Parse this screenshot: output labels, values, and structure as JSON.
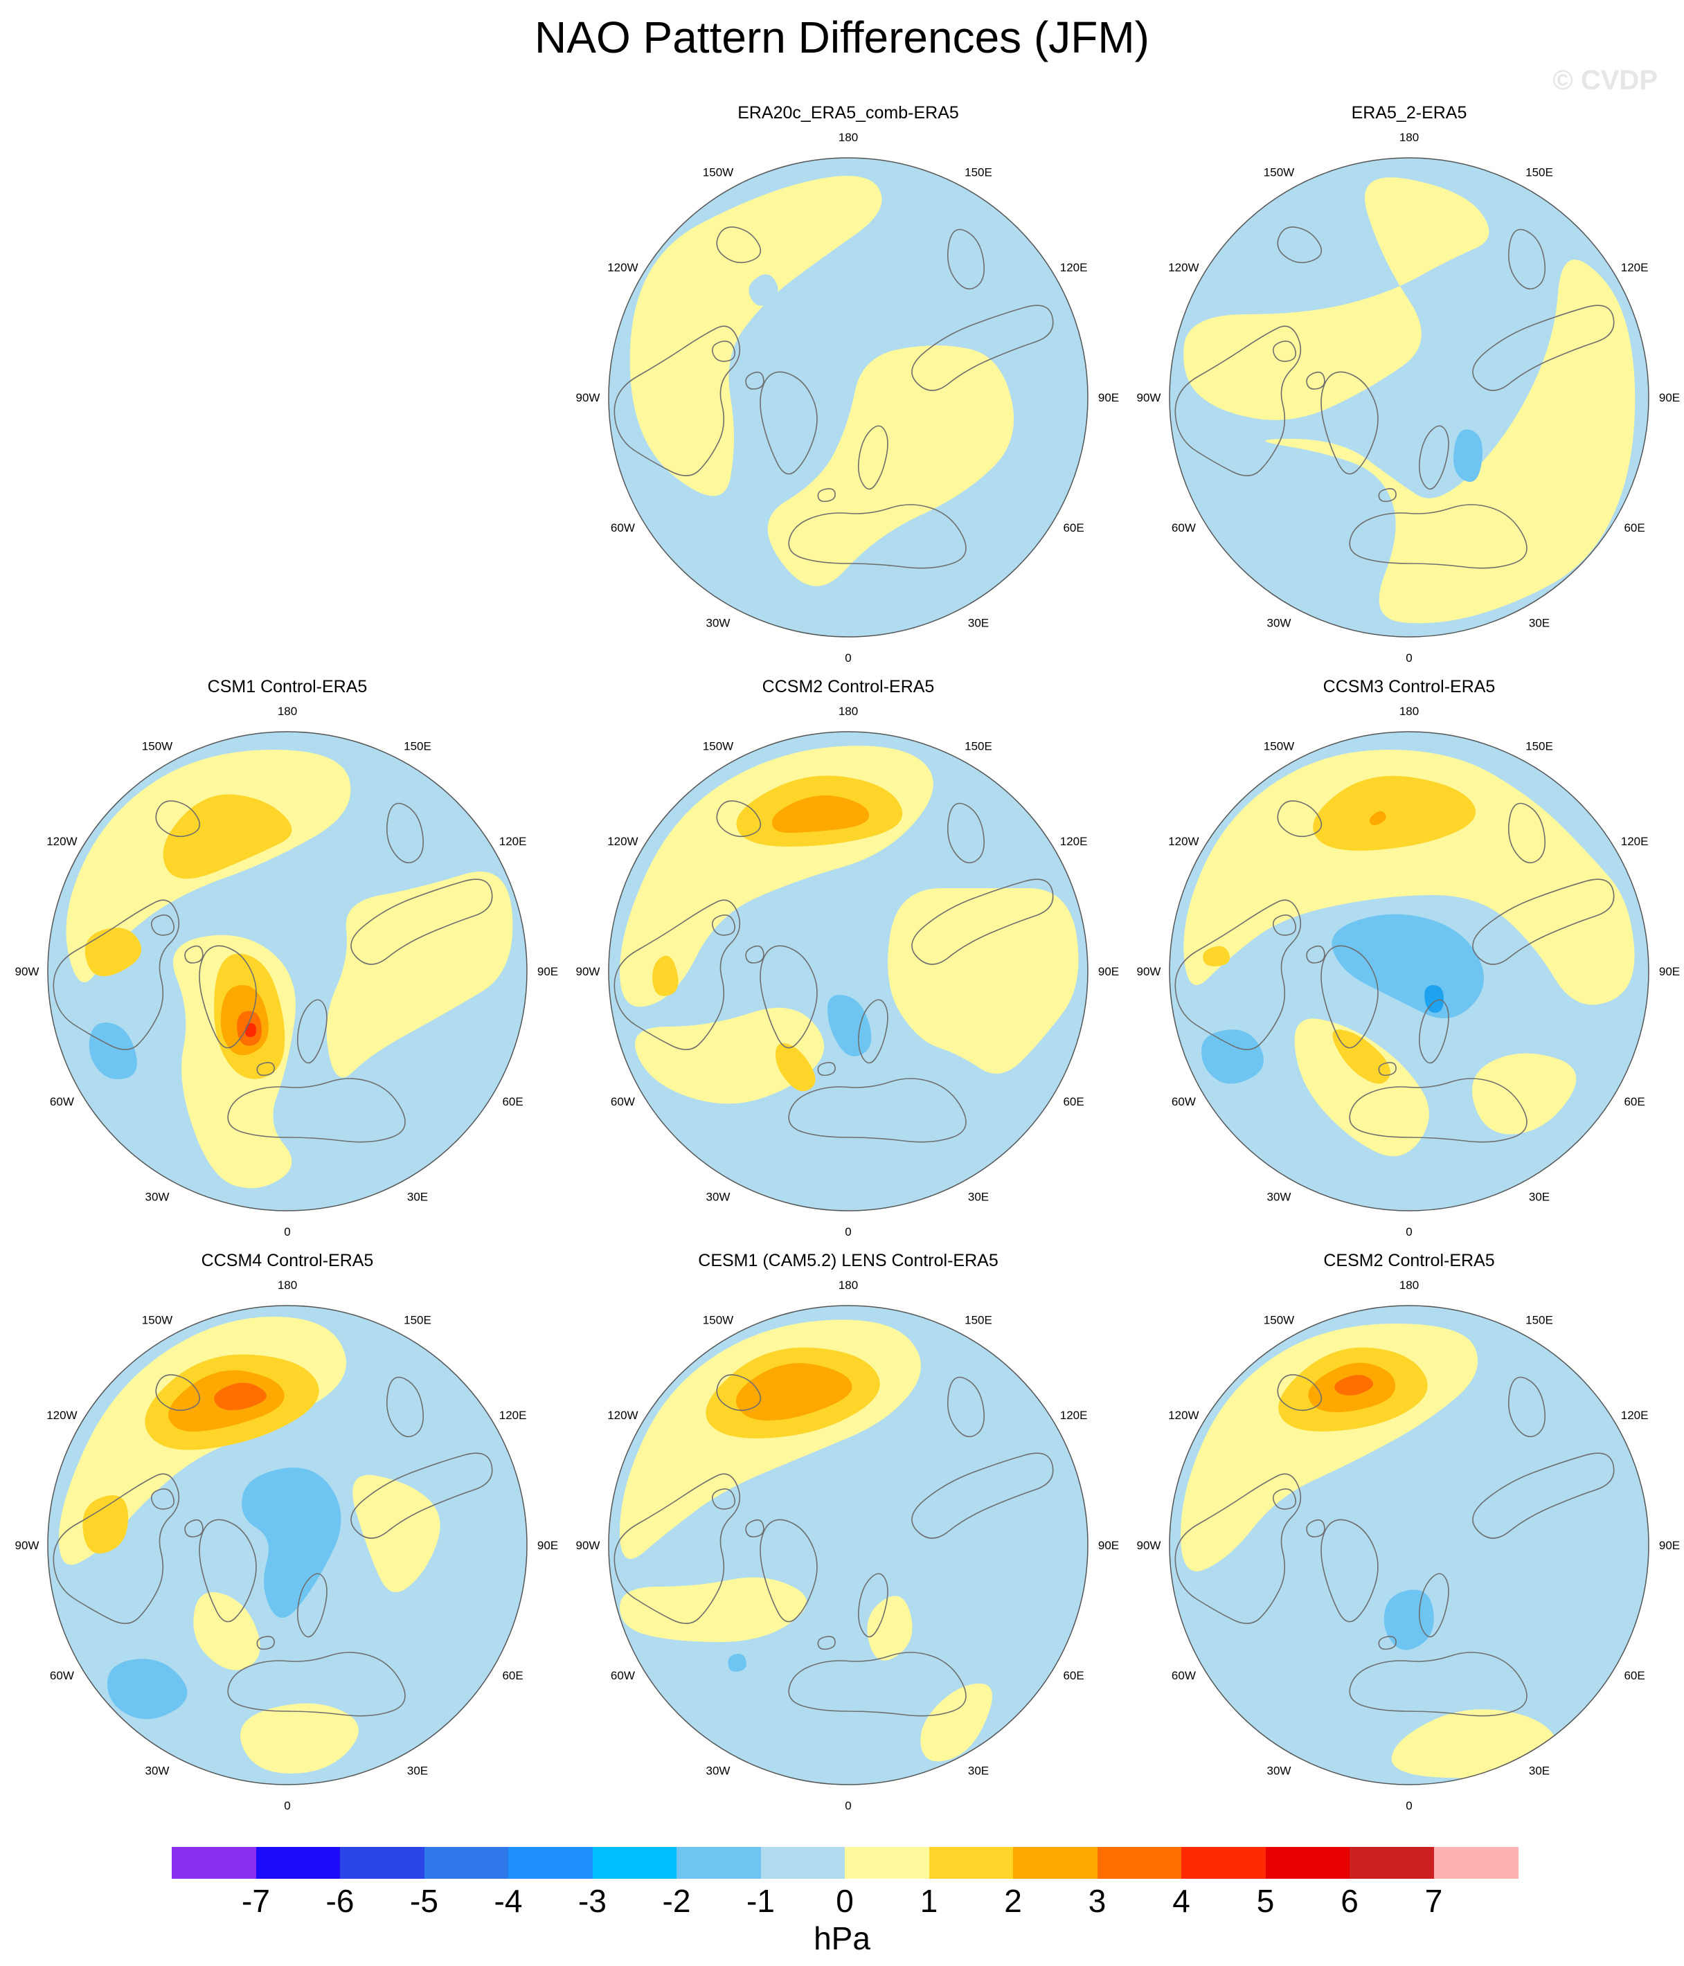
{
  "title": "NAO Pattern Differences (JFM)",
  "watermark": "© CVDP",
  "lon_labels": [
    "180",
    "150E",
    "120E",
    "90E",
    "60E",
    "30E",
    "0",
    "30W",
    "60W",
    "90W",
    "120W",
    "150W"
  ],
  "colors": {
    "ocean_blue": "#b1dcf0",
    "land_line": "#6e6e6e",
    "n1": "#b1dcf0",
    "n2": "#6fc5f2",
    "n3": "#1fa3f0",
    "p1": "#fff89c",
    "p2": "#ffd52a",
    "p3": "#ffa800",
    "p4": "#ff6f00",
    "p5": "#ff2a00"
  },
  "panels": [
    {
      "title": "ERA20c_ERA5_comb-ERA5",
      "pattern": "era20c"
    },
    {
      "title": "ERA5_2-ERA5",
      "pattern": "era5_2"
    },
    {
      "title": "CSM1 Control-ERA5",
      "pattern": "csm1"
    },
    {
      "title": "CCSM2 Control-ERA5",
      "pattern": "ccsm2"
    },
    {
      "title": "CCSM3 Control-ERA5",
      "pattern": "ccsm3"
    },
    {
      "title": "CCSM4 Control-ERA5",
      "pattern": "ccsm4"
    },
    {
      "title": "CESM1 (CAM5.2) LENS Control-ERA5",
      "pattern": "cesm1"
    },
    {
      "title": "CESM2 Control-ERA5",
      "pattern": "cesm2"
    }
  ],
  "colorbar": {
    "title": "hPa",
    "labels": [
      "-7",
      "-6",
      "-5",
      "-4",
      "-3",
      "-2",
      "-1",
      "0",
      "1",
      "2",
      "3",
      "4",
      "5",
      "6",
      "7"
    ],
    "colors": [
      "#8a2ff0",
      "#1c0bf8",
      "#2b45e8",
      "#2f78ea",
      "#1d8fff",
      "#00bfff",
      "#6fc5f2",
      "#b1dcf0",
      "#fff89c",
      "#ffd52a",
      "#ffa800",
      "#ff6f00",
      "#ff2a00",
      "#e80000",
      "#cc1f1f",
      "#ffb2b2"
    ]
  }
}
